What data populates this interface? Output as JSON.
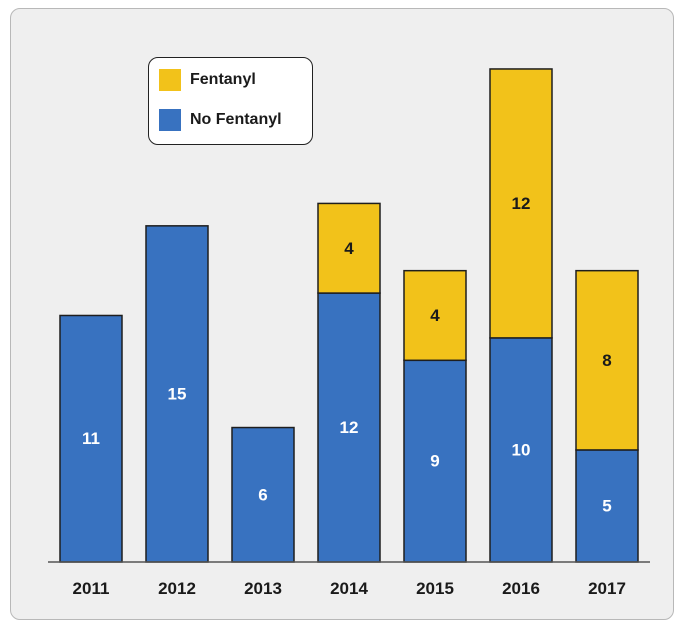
{
  "chart_data": {
    "type": "bar",
    "stacked": true,
    "title": "",
    "xlabel": "",
    "ylabel": "",
    "categories": [
      "2011",
      "2012",
      "2013",
      "2014",
      "2015",
      "2016",
      "2017"
    ],
    "series": [
      {
        "name": "No Fentanyl",
        "color": "#3872c0",
        "values": [
          11,
          15,
          6,
          12,
          9,
          10,
          5
        ]
      },
      {
        "name": "Fentanyl",
        "color": "#f2c21a",
        "values": [
          0,
          0,
          0,
          4,
          4,
          12,
          8
        ]
      }
    ],
    "ylim": [
      0,
      22.4
    ],
    "grid": false,
    "legend": {
      "position": "top-left",
      "order": [
        "Fentanyl",
        "No Fentanyl"
      ]
    },
    "label_colors": {
      "No Fentanyl": "#ffffff",
      "Fentanyl": "#1a1a1a"
    }
  }
}
